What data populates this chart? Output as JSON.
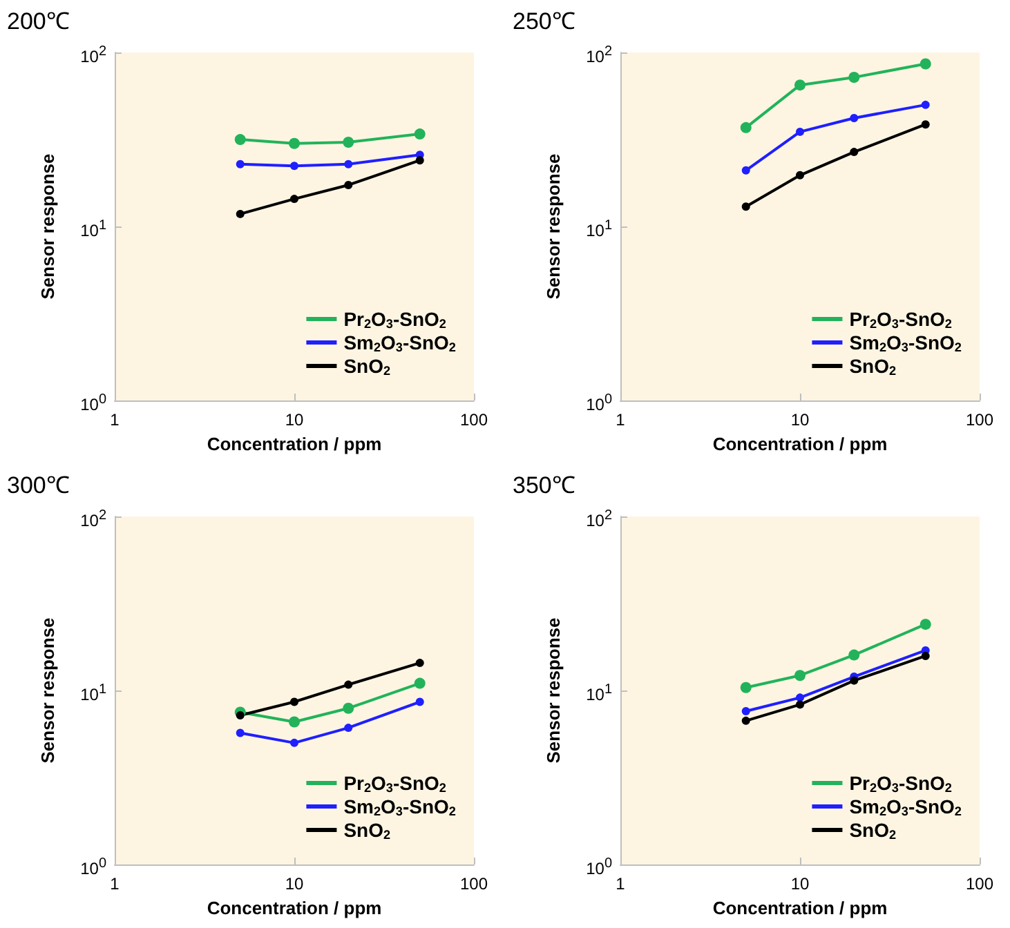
{
  "chart_data": [
    {
      "type": "line",
      "title": "200℃",
      "xlabel": "Concentration / ppm",
      "ylabel": "Sensor response",
      "log": "xy",
      "xlim": [
        1,
        100
      ],
      "ylim": [
        1,
        100
      ],
      "xticks": [
        1,
        10,
        100
      ],
      "yticks": [
        {
          "value": 1,
          "label": "10$^{0}$"
        },
        {
          "value": 10,
          "label": "10$^{1}$"
        },
        {
          "value": 100,
          "label": "10$^{2}$"
        }
      ],
      "grid": false,
      "legend": "bottom right",
      "marker": "circle",
      "line_style": "solid",
      "x": [
        5,
        10,
        20,
        50
      ],
      "series": [
        {
          "name": "Pr$_{2}$O$_{3}$-SnO$_{2}$",
          "color": "#22b35a",
          "values": [
            31.6,
            30,
            30.5,
            34
          ]
        },
        {
          "name": "Sm$_{2}$O$_{3}$-SnO$_{2}$",
          "color": "#1f1fff",
          "values": [
            22.8,
            22.3,
            22.8,
            25.8
          ]
        },
        {
          "name": "SnO$_{2}$",
          "color": "#000000",
          "values": [
            11.8,
            14.4,
            17.3,
            24
          ]
        }
      ]
    },
    {
      "type": "line",
      "title": "250℃",
      "xlabel": "Concentration / ppm",
      "ylabel": "Sensor response",
      "log": "xy",
      "xlim": [
        1,
        100
      ],
      "ylim": [
        1,
        100
      ],
      "xticks": [
        1,
        10,
        100
      ],
      "yticks": [
        {
          "value": 1,
          "label": "10$^{0}$"
        },
        {
          "value": 10,
          "label": "10$^{1}$"
        },
        {
          "value": 100,
          "label": "10$^{2}$"
        }
      ],
      "grid": false,
      "legend": "bottom right",
      "marker": "circle",
      "line_style": "solid",
      "x": [
        5,
        10,
        20,
        50
      ],
      "series": [
        {
          "name": "Pr$_{2}$O$_{3}$-SnO$_{2}$",
          "color": "#22b35a",
          "values": [
            37,
            65,
            72,
            86
          ]
        },
        {
          "name": "Sm$_{2}$O$_{3}$-SnO$_{2}$",
          "color": "#1f1fff",
          "values": [
            21,
            35,
            42,
            50
          ]
        },
        {
          "name": "SnO$_{2}$",
          "color": "#000000",
          "values": [
            13,
            19.7,
            26.8,
            38.6
          ]
        }
      ]
    },
    {
      "type": "line",
      "title": "300℃",
      "xlabel": "Concentration / ppm",
      "ylabel": "Sensor response",
      "log": "xy",
      "xlim": [
        1,
        100
      ],
      "ylim": [
        1,
        100
      ],
      "xticks": [
        1,
        10,
        100
      ],
      "yticks": [
        {
          "value": 1,
          "label": "10$^{0}$"
        },
        {
          "value": 10,
          "label": "10$^{1}$"
        },
        {
          "value": 100,
          "label": "10$^{2}$"
        }
      ],
      "grid": false,
      "legend": "bottom right",
      "marker": "circle",
      "line_style": "solid",
      "x": [
        5,
        10,
        20,
        50
      ],
      "series": [
        {
          "name": "Pr$_{2}$O$_{3}$-SnO$_{2}$",
          "color": "#22b35a",
          "values": [
            7.5,
            6.6,
            7.9,
            11
          ]
        },
        {
          "name": "Sm$_{2}$O$_{3}$-SnO$_{2}$",
          "color": "#1f1fff",
          "values": [
            5.7,
            5.0,
            6.1,
            8.6
          ]
        },
        {
          "name": "SnO$_{2}$",
          "color": "#000000",
          "values": [
            7.2,
            8.6,
            10.8,
            14.4
          ]
        }
      ]
    },
    {
      "type": "line",
      "title": "350℃",
      "xlabel": "Concentration / ppm",
      "ylabel": "Sensor response",
      "log": "xy",
      "xlim": [
        1,
        100
      ],
      "ylim": [
        1,
        100
      ],
      "xticks": [
        1,
        10,
        100
      ],
      "yticks": [
        {
          "value": 1,
          "label": "10$^{0}$"
        },
        {
          "value": 10,
          "label": "10$^{1}$"
        },
        {
          "value": 100,
          "label": "10$^{2}$"
        }
      ],
      "grid": false,
      "legend": "bottom right",
      "marker": "circle",
      "line_style": "solid",
      "x": [
        5,
        10,
        20,
        50
      ],
      "series": [
        {
          "name": "Pr$_{2}$O$_{3}$-SnO$_{2}$",
          "color": "#22b35a",
          "values": [
            10.4,
            12.2,
            16,
            24
          ]
        },
        {
          "name": "Sm$_{2}$O$_{3}$-SnO$_{2}$",
          "color": "#1f1fff",
          "values": [
            7.6,
            9.1,
            12,
            17
          ]
        },
        {
          "name": "SnO$_{2}$",
          "color": "#000000",
          "values": [
            6.7,
            8.3,
            11.4,
            15.8
          ]
        }
      ]
    }
  ]
}
